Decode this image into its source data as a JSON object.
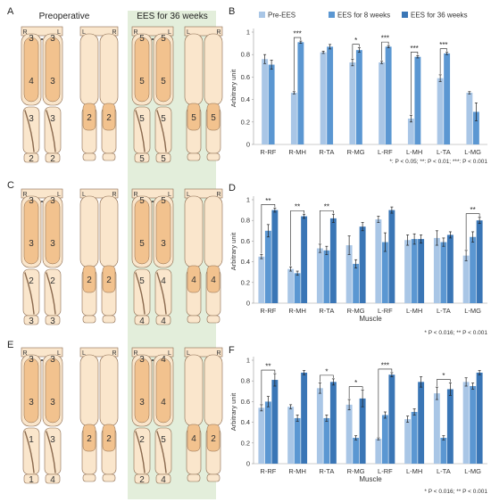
{
  "panel_letters": [
    "A",
    "B",
    "C",
    "D",
    "E",
    "F"
  ],
  "header": {
    "preoperative": "Preoperative",
    "ees36": "EES for 36 weeks"
  },
  "limb_letters": {
    "r": "R",
    "l": "L"
  },
  "muscle_maps": [
    {
      "pre": {
        "front_r": "3",
        "front_l": "3",
        "thigh_r": "4",
        "thigh_l": "3",
        "knee_r": "3",
        "knee_l": "3",
        "foot_r": "2",
        "foot_l": "2",
        "back_r": "2",
        "back_l": "2"
      },
      "post": {
        "front_r": "5",
        "front_l": "5",
        "thigh_r": "5",
        "thigh_l": "5",
        "knee_r": "5",
        "knee_l": "5",
        "foot_r": "5",
        "foot_l": "5",
        "back_r": "5",
        "back_l": "5"
      }
    },
    {
      "pre": {
        "front_r": "3",
        "front_l": "3",
        "thigh_r": "3",
        "thigh_l": "3",
        "knee_r": "2",
        "knee_l": "2",
        "foot_r": "3",
        "foot_l": "3",
        "back_r": "2",
        "back_l": "2"
      },
      "post": {
        "front_r": "5",
        "front_l": "5",
        "thigh_r": "5",
        "thigh_l": "3",
        "knee_r": "5",
        "knee_l": "4",
        "foot_r": "4",
        "foot_l": "4",
        "back_r": "4",
        "back_l": "4"
      }
    },
    {
      "pre": {
        "front_r": "3",
        "front_l": "3",
        "thigh_r": "3",
        "thigh_l": "3",
        "knee_r": "1",
        "knee_l": "3",
        "foot_r": "1",
        "foot_l": "4",
        "back_r": "2",
        "back_l": "2"
      },
      "post": {
        "front_r": "3",
        "front_l": "4",
        "thigh_r": "3",
        "thigh_l": "4",
        "knee_r": "2",
        "knee_l": "5",
        "foot_r": "2",
        "foot_l": "4",
        "back_r": "4",
        "back_l": "2"
      }
    }
  ],
  "colors": {
    "pre": "#a9c6e6",
    "w8": "#5b97d2",
    "w36": "#3a76b6",
    "green_band": "#e3eedb",
    "skin": "#fae6cc",
    "muscle": "#f2c28e",
    "outline": "#8a6a4f"
  },
  "chart_data": [
    {
      "panel": "B",
      "type": "bar",
      "categories": [
        "R-RF",
        "R-MH",
        "R-TA",
        "R-MG",
        "L-RF",
        "L-MH",
        "L-TA",
        "L-MG"
      ],
      "series": [
        {
          "name": "Pre-EES",
          "values": [
            0.76,
            0.46,
            0.82,
            0.73,
            0.73,
            0.23,
            0.59,
            0.46
          ],
          "errors": [
            0.04,
            0.01,
            0.01,
            0.03,
            0.01,
            0.03,
            0.03,
            0.01
          ]
        },
        {
          "name": "EES for 8 weeks",
          "values": [
            0.71,
            0.91,
            0.87,
            0.84,
            0.87,
            0.78,
            0.81,
            0.29
          ],
          "errors": [
            0.04,
            0.01,
            0.02,
            0.02,
            0.01,
            0.01,
            0.01,
            0.08
          ]
        }
      ],
      "ylabel": "Arbitrary unit",
      "ylim": [
        0,
        1
      ],
      "yticks": [
        "0",
        "0.2",
        "0.4",
        "0.6",
        "0.8",
        "1"
      ],
      "legend": [
        "Pre-EES",
        "EES for 8 weeks",
        "EES for 36 weeks"
      ],
      "significance": [
        {
          "group": 1,
          "label": "***"
        },
        {
          "group": 3,
          "label": "*"
        },
        {
          "group": 4,
          "label": "***"
        },
        {
          "group": 5,
          "label": "***"
        },
        {
          "group": 6,
          "label": "***"
        }
      ],
      "footnote": "*: P < 0.05; **: P < 0.01; ***: P < 0.001"
    },
    {
      "panel": "D",
      "type": "bar",
      "categories": [
        "R-RF",
        "R-MH",
        "R-TA",
        "R-MG",
        "L-RF",
        "L-MH",
        "L-TA",
        "L-MG"
      ],
      "series": [
        {
          "name": "Pre-EES",
          "values": [
            0.45,
            0.33,
            0.53,
            0.56,
            0.81,
            0.61,
            0.63,
            0.46
          ],
          "errors": [
            0.02,
            0.02,
            0.04,
            0.09,
            0.03,
            0.05,
            0.07,
            0.05
          ]
        },
        {
          "name": "EES for 8 weeks",
          "values": [
            0.7,
            0.29,
            0.51,
            0.38,
            0.59,
            0.62,
            0.59,
            0.64
          ],
          "errors": [
            0.06,
            0.02,
            0.04,
            0.04,
            0.09,
            0.05,
            0.04,
            0.05
          ]
        },
        {
          "name": "EES for 36 weeks",
          "values": [
            0.9,
            0.84,
            0.82,
            0.74,
            0.9,
            0.62,
            0.66,
            0.8
          ],
          "errors": [
            0.02,
            0.02,
            0.04,
            0.04,
            0.03,
            0.04,
            0.03,
            0.03
          ]
        }
      ],
      "xlabel": "Muscle",
      "ylabel": "Arbitrary unit",
      "ylim": [
        0,
        1
      ],
      "yticks": [
        "0",
        "0.2",
        "0.4",
        "0.6",
        "0.8",
        "1"
      ],
      "significance": [
        {
          "group": 0,
          "label": "**"
        },
        {
          "group": 1,
          "label": "**"
        },
        {
          "group": 2,
          "label": "**"
        },
        {
          "group": 7,
          "label": "**"
        }
      ],
      "footnote": "* P < 0.016; ** P < 0.001"
    },
    {
      "panel": "F",
      "type": "bar",
      "categories": [
        "R-RF",
        "R-MH",
        "R-TA",
        "R-MG",
        "L-RF",
        "L-MH",
        "L-TA",
        "L-MG"
      ],
      "series": [
        {
          "name": "Pre-EES",
          "values": [
            0.54,
            0.55,
            0.73,
            0.57,
            0.24,
            0.43,
            0.68,
            0.79
          ],
          "errors": [
            0.03,
            0.02,
            0.05,
            0.05,
            0.01,
            0.03,
            0.06,
            0.04
          ]
        },
        {
          "name": "EES for 8 weeks",
          "values": [
            0.6,
            0.44,
            0.44,
            0.25,
            0.47,
            0.5,
            0.25,
            0.75
          ],
          "errors": [
            0.05,
            0.03,
            0.03,
            0.02,
            0.03,
            0.03,
            0.02,
            0.03
          ]
        },
        {
          "name": "EES for 36 weeks",
          "values": [
            0.81,
            0.88,
            0.79,
            0.63,
            0.86,
            0.79,
            0.72,
            0.88
          ],
          "errors": [
            0.06,
            0.02,
            0.03,
            0.08,
            0.02,
            0.05,
            0.06,
            0.02
          ]
        }
      ],
      "xlabel": "Muscle",
      "ylabel": "Arbitrary unit",
      "ylim": [
        0,
        1
      ],
      "yticks": [
        "0",
        "0.2",
        "0.4",
        "0.6",
        "0.8",
        "1"
      ],
      "significance": [
        {
          "group": 0,
          "label": "**"
        },
        {
          "group": 2,
          "label": "*"
        },
        {
          "group": 3,
          "label": "*"
        },
        {
          "group": 4,
          "label": "***"
        },
        {
          "group": 6,
          "label": "*"
        }
      ],
      "footnote": "* P < 0.016; ** P < 0.001"
    }
  ]
}
